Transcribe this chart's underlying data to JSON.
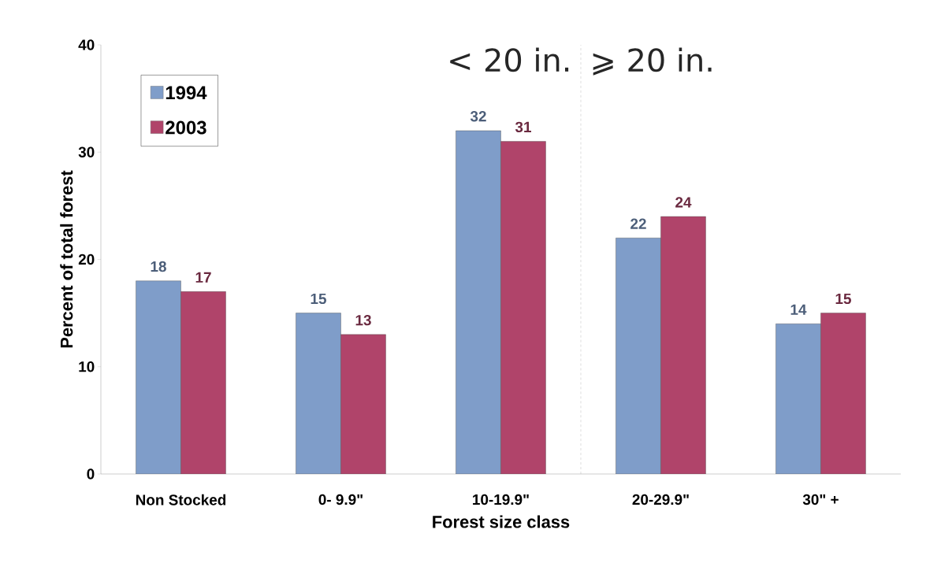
{
  "chart_data": {
    "type": "bar",
    "xlabel": "Forest size class",
    "ylabel": "Percent of total forest",
    "categories": [
      "Non Stocked",
      "0- 9.9\"",
      "10-19.9\"",
      "20-29.9\"",
      "30\" +"
    ],
    "series": [
      {
        "name": "1994",
        "color": "#7f9dc9",
        "values": [
          18,
          15,
          32,
          22,
          14
        ]
      },
      {
        "name": "2003",
        "color": "#b0446a",
        "values": [
          17,
          13,
          31,
          24,
          15
        ]
      }
    ],
    "ylim": [
      0,
      40
    ],
    "yticks": [
      0,
      10,
      20,
      30,
      40
    ],
    "data_labels": true,
    "annotations": [
      "< 20 in.",
      "⩾ 20 in."
    ],
    "legend": "top left"
  }
}
